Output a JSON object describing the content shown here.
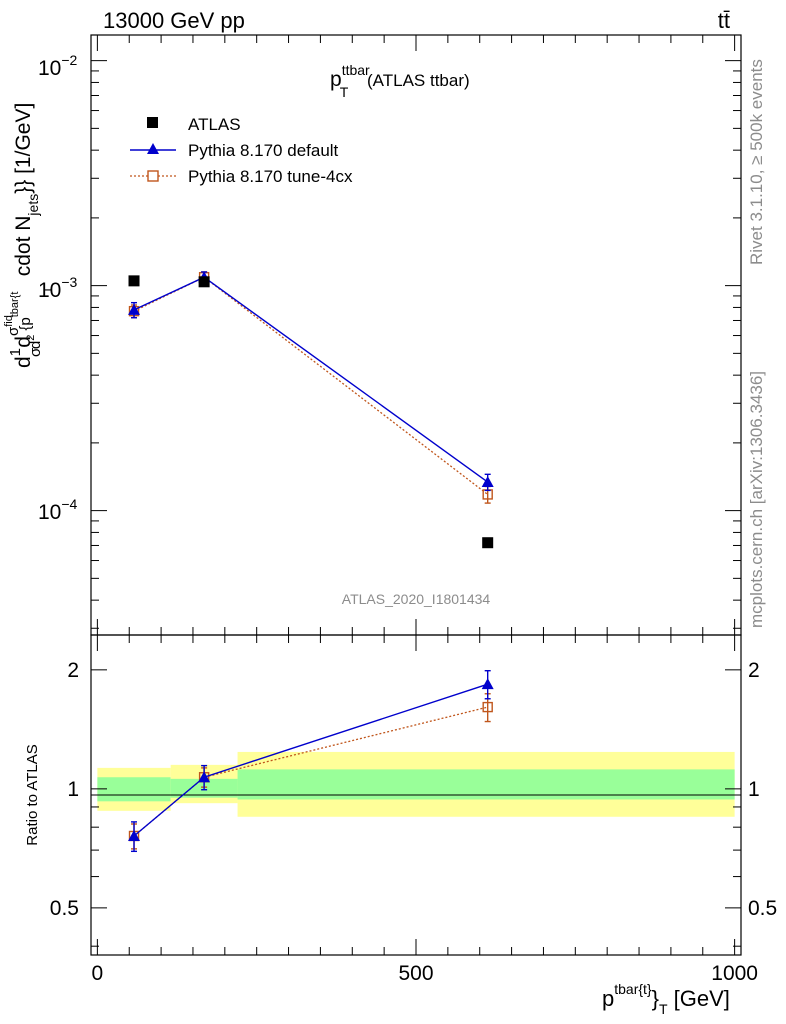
{
  "header": {
    "energy_label": "13000 GeV pp",
    "process_label": "tt̄"
  },
  "side_text": {
    "rivet": "Rivet 3.1.10, ≥ 500k events",
    "mcplots": "mcplots.cern.ch [arXiv:1306.3436]"
  },
  "watermark": "ATLAS_2020_I1801434",
  "colors": {
    "data": "#000000",
    "default": "#0000cc",
    "tune": "#c0561c",
    "band_inner": "#99ff99",
    "band_outer": "#ffff99"
  },
  "chart_data": [
    {
      "type": "scatter",
      "title": {
        "main": "p",
        "sup": "ttbar",
        "sub": "T",
        "rest": " (ATLAS ttbar)"
      },
      "ylabel": {
        "frac": "d",
        "one": "1",
        "sigma_main": "σ",
        "d2": "d",
        "sig2": "σ",
        "sig2_sup": "fid",
        "den2": "d",
        "den2_sup": "2",
        "p": "{p",
        "tbar_sup": "tbar{t",
        "subT": "T",
        "tail": "cdot N",
        "jets_sub": "jets",
        "close": "}} [1/GeV]"
      },
      "yscale": "log",
      "ylim": [
        2.8e-05,
        0.013
      ],
      "xlim": [
        -10,
        1010
      ],
      "y_tick_labels": [
        {
          "value": 0.01,
          "base": "10",
          "exp": "−2"
        },
        {
          "value": 0.001,
          "base": "10",
          "exp": "−3"
        },
        {
          "value": 0.0001,
          "base": "10",
          "exp": "−4"
        }
      ],
      "legend": {
        "position": "top-left",
        "entries": [
          "ATLAS",
          "Pythia 8.170 default",
          "Pythia 8.170 tune-4cx"
        ]
      },
      "series": [
        {
          "name": "ATLAS",
          "marker": "square",
          "x": [
            57.5,
            167.5,
            612.5
          ],
          "y": [
            0.00105,
            0.00104,
            7.2e-05
          ],
          "yerr": [
            0,
            0,
            0
          ]
        },
        {
          "name": "Pythia 8.170 default",
          "marker": "triangle",
          "x": [
            57.5,
            167.5,
            612.5
          ],
          "y": [
            0.00078,
            0.00109,
            0.000134
          ],
          "yerr": [
            6e-05,
            6e-05,
            1.1e-05
          ]
        },
        {
          "name": "Pythia 8.170 tune-4cx",
          "marker": "open-square",
          "x": [
            57.5,
            167.5,
            612.5
          ],
          "y": [
            0.00077,
            0.00109,
            0.000118
          ],
          "yerr": [
            5e-05,
            6e-05,
            1e-05
          ]
        }
      ]
    },
    {
      "type": "scatter",
      "ylabel": "Ratio to ATLAS",
      "xlabel": {
        "main": "p",
        "sup": "tbar{t}",
        "rest": "}",
        "sub": "T",
        "unit": " [GeV]"
      },
      "yscale": "log",
      "ylim": [
        0.38,
        2.45
      ],
      "xlim": [
        -10,
        1010
      ],
      "x_ticks": [
        0,
        500,
        1000
      ],
      "y_ticks": [
        0.5,
        1,
        2
      ],
      "bands": [
        {
          "x0": 0,
          "x1": 115,
          "inner": [
            0.93,
            1.07
          ],
          "outer": [
            0.88,
            1.13
          ]
        },
        {
          "x0": 115,
          "x1": 220,
          "inner": [
            0.95,
            1.06
          ],
          "outer": [
            0.92,
            1.15
          ]
        },
        {
          "x0": 220,
          "x1": 1000,
          "inner": [
            0.94,
            1.12
          ],
          "outer": [
            0.85,
            1.24
          ]
        }
      ],
      "series": [
        {
          "name": "Pythia 8.170 default",
          "x": [
            57.5,
            167.5,
            612.5
          ],
          "y": [
            0.76,
            1.07,
            1.84
          ],
          "yerr": [
            0.065,
            0.075,
            0.15
          ]
        },
        {
          "name": "Pythia 8.170 tune-4cx",
          "x": [
            57.5,
            167.5,
            612.5
          ],
          "y": [
            0.76,
            1.07,
            1.61
          ],
          "yerr": [
            0.055,
            0.06,
            0.13
          ]
        }
      ]
    }
  ]
}
